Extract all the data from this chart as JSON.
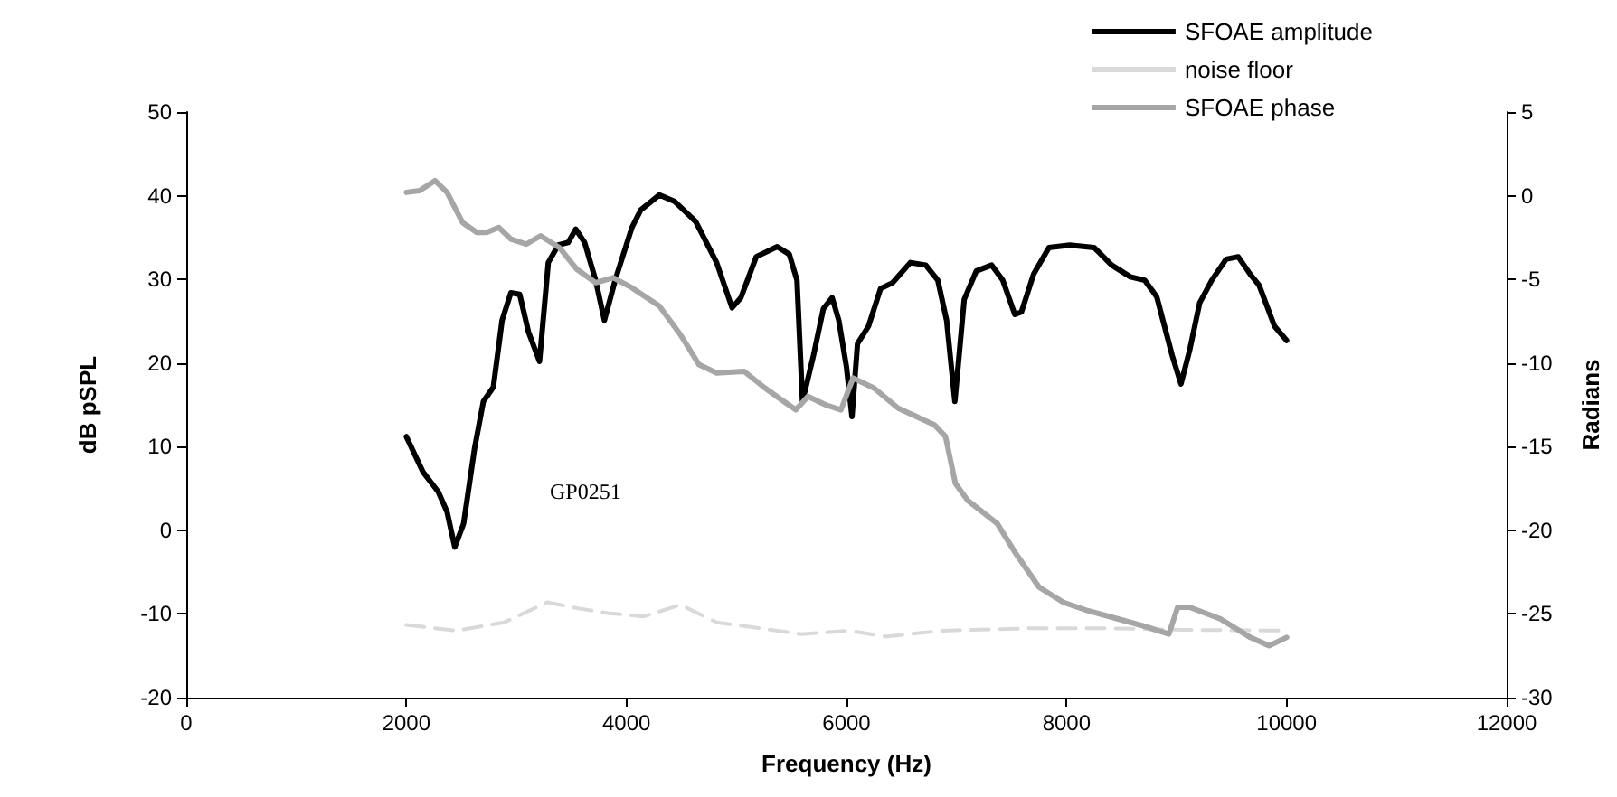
{
  "chart_data": {
    "type": "line",
    "xlabel": "Frequency (Hz)",
    "ylabel": "dB pSPL",
    "y2label": "Radians",
    "annotations": [
      "GP0251"
    ],
    "xlim": [
      0,
      12000
    ],
    "xticks": [
      0,
      2000,
      4000,
      6000,
      8000,
      10000,
      12000
    ],
    "ylim": [
      -20,
      50
    ],
    "yticks": [
      -20,
      -10,
      0,
      10,
      20,
      30,
      40,
      50
    ],
    "y2lim": [
      -30,
      5
    ],
    "y2ticks": [
      -30,
      -25,
      -20,
      -15,
      -10,
      -5,
      0,
      5
    ],
    "grid": false,
    "legend": "top right",
    "marker": "none",
    "series": [
      {
        "name": "SFOAE amplitude",
        "color": "#000000",
        "line_style": "solid",
        "x": [
          2000,
          2150,
          2290,
          2370,
          2440,
          2520,
          2620,
          2700,
          2790,
          2870,
          2950,
          3030,
          3110,
          3210,
          3290,
          3380,
          3470,
          3540,
          3620,
          3720,
          3800,
          3900,
          4050,
          4130,
          4300,
          4440,
          4630,
          4820,
          4960,
          5040,
          5180,
          5370,
          5480,
          5550,
          5600,
          5700,
          5790,
          5870,
          5930,
          6000,
          6050,
          6100,
          6200,
          6310,
          6420,
          6580,
          6720,
          6830,
          6910,
          6985,
          7070,
          7180,
          7320,
          7420,
          7530,
          7590,
          7700,
          7840,
          8030,
          8250,
          8410,
          8580,
          8710,
          8820,
          8960,
          9040,
          9120,
          9210,
          9320,
          9450,
          9560,
          9670,
          9750,
          9890,
          10000
        ],
        "values": [
          11.2,
          7.0,
          4.6,
          2.2,
          -2.0,
          0.8,
          9.8,
          15.4,
          17.1,
          25.1,
          28.4,
          28.2,
          23.7,
          20.2,
          32.0,
          34.1,
          34.4,
          36.0,
          34.4,
          29.9,
          25.1,
          30.0,
          36.2,
          38.3,
          40.1,
          39.3,
          36.9,
          32.0,
          26.6,
          27.8,
          32.7,
          33.9,
          33.0,
          29.9,
          15.4,
          20.9,
          26.5,
          27.8,
          25.1,
          19.5,
          13.6,
          22.3,
          24.4,
          28.9,
          29.6,
          32.0,
          31.7,
          29.9,
          25.1,
          15.4,
          27.6,
          31.0,
          31.7,
          29.9,
          25.8,
          26.1,
          30.6,
          33.8,
          34.1,
          33.8,
          31.7,
          30.3,
          29.9,
          27.9,
          20.9,
          17.5,
          21.6,
          27.2,
          29.9,
          32.4,
          32.7,
          30.6,
          29.3,
          24.4,
          22.7
        ]
      },
      {
        "name": "noise floor",
        "color": "#d9d9d9",
        "line_style": "dashed",
        "x": [
          2000,
          2450,
          2890,
          3280,
          3550,
          3830,
          4160,
          4490,
          4820,
          5210,
          5590,
          6030,
          6360,
          6860,
          7700,
          8360,
          9070,
          10000
        ],
        "values": [
          -11.3,
          -12.0,
          -11.0,
          -8.6,
          -9.3,
          -9.9,
          -10.3,
          -8.9,
          -11.0,
          -11.7,
          -12.4,
          -12.0,
          -12.7,
          -12.0,
          -11.7,
          -11.7,
          -11.9,
          -12.0
        ]
      },
      {
        "name": "SFOAE phase",
        "color": "#a6a6a6",
        "line_style": "solid",
        "axis": "y2",
        "x": [
          2000,
          2120,
          2260,
          2370,
          2510,
          2640,
          2730,
          2840,
          2950,
          3090,
          3220,
          3390,
          3550,
          3720,
          3880,
          4050,
          4300,
          4490,
          4660,
          4820,
          5070,
          5260,
          5430,
          5540,
          5650,
          5810,
          5950,
          6060,
          6250,
          6470,
          6800,
          6900,
          6990,
          7100,
          7370,
          7530,
          7750,
          7970,
          8190,
          8470,
          8690,
          8930,
          9010,
          9120,
          9400,
          9670,
          9840,
          10000
        ],
        "values": [
          0.2,
          0.3,
          0.9,
          0.2,
          -1.6,
          -2.2,
          -2.2,
          -1.9,
          -2.6,
          -2.9,
          -2.4,
          -3.1,
          -4.4,
          -5.2,
          -4.9,
          -5.5,
          -6.6,
          -8.3,
          -10.1,
          -10.6,
          -10.5,
          -11.5,
          -12.3,
          -12.8,
          -12.0,
          -12.5,
          -12.8,
          -10.9,
          -11.5,
          -12.7,
          -13.7,
          -14.4,
          -17.2,
          -18.2,
          -19.6,
          -21.3,
          -23.4,
          -24.3,
          -24.8,
          -25.3,
          -25.7,
          -26.2,
          -24.6,
          -24.6,
          -25.3,
          -26.4,
          -26.9,
          -26.4
        ]
      }
    ]
  }
}
